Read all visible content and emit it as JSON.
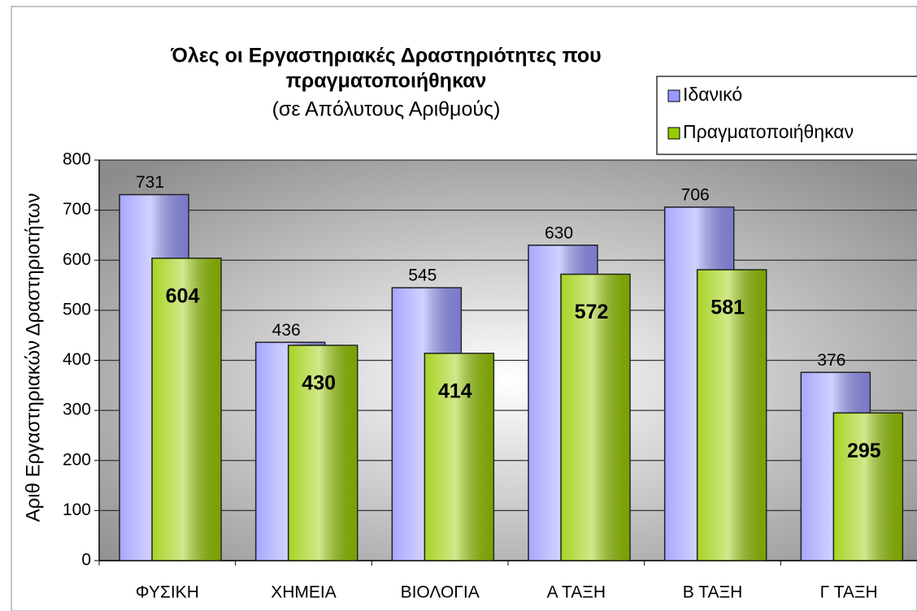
{
  "chart_data": {
    "type": "bar",
    "title": "Όλες οι Εργαστηριακές Δραστηριότητες που",
    "title_line2": "πραγματοποιήθηκαν",
    "subtitle": "(σε Απόλυτους Αριθμούς)",
    "y_label": "Αριθ Εργαστηριακών Δραστηριοτήτων",
    "categories": [
      "ΦΥΣΙΚΗ",
      "ΧΗΜΕΙΑ",
      "ΒΙΟΛΟΓΙΑ",
      "Α ΤΑΞΗ",
      "Β ΤΑΞΗ",
      "Γ ΤΑΞΗ"
    ],
    "series": [
      {
        "name": "Ιδανικό",
        "color": "#9999ff",
        "values": [
          731,
          436,
          545,
          630,
          706,
          376
        ]
      },
      {
        "name": "Πραγματοποιήθηκαν",
        "color": "#99cc00",
        "values": [
          604,
          430,
          414,
          572,
          581,
          295
        ]
      }
    ],
    "ylim": [
      0,
      800
    ],
    "yticks": [
      0,
      100,
      200,
      300,
      400,
      500,
      600,
      700,
      800
    ],
    "grid": true,
    "legend": "top-right"
  }
}
